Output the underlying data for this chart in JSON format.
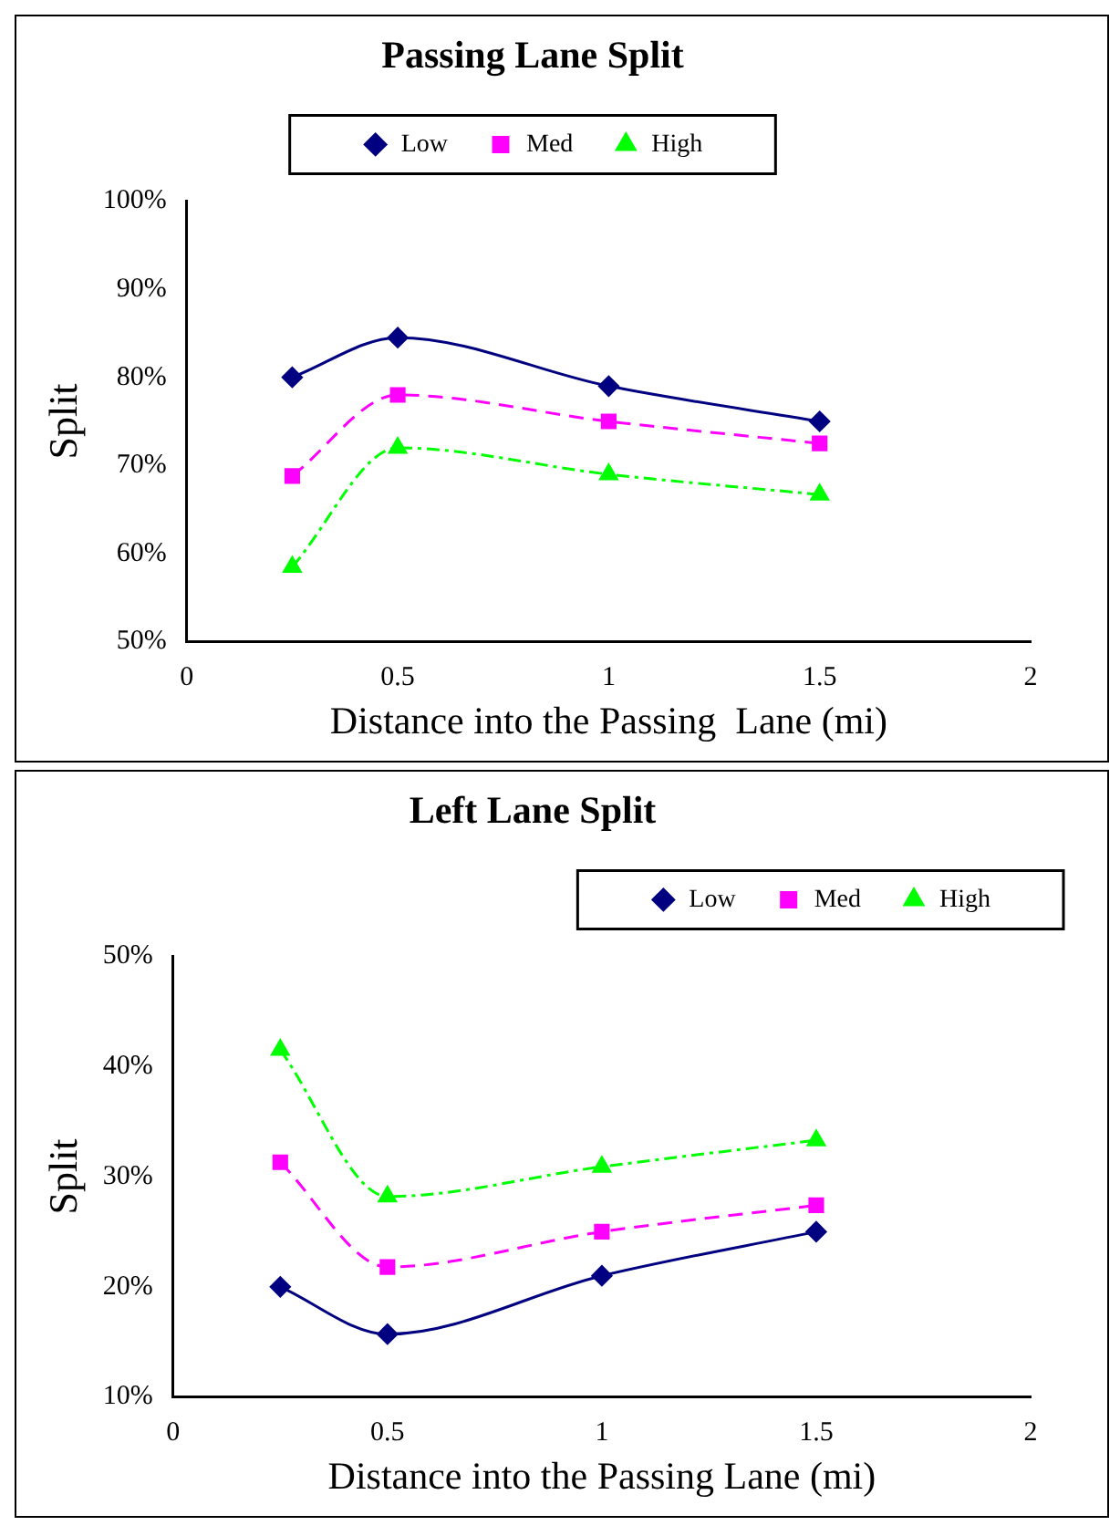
{
  "chart_data": [
    {
      "type": "line",
      "title": "Passing Lane Split",
      "xlabel": "Distance into the Passing  Lane (mi)",
      "ylabel": "Split",
      "xlim": [
        0,
        2
      ],
      "xticks": [
        0,
        0.5,
        1,
        1.5,
        2
      ],
      "ylim": [
        50,
        100
      ],
      "yticks": [
        {
          "value": 50,
          "label": "50%"
        },
        {
          "value": 60,
          "label": "60%"
        },
        {
          "value": 70,
          "label": "70%"
        },
        {
          "value": 80,
          "label": "80%"
        },
        {
          "value": 90,
          "label": "90%"
        },
        {
          "value": 100,
          "label": "100%"
        }
      ],
      "grid": false,
      "legend": "top",
      "x": [
        0.25,
        0.5,
        1,
        1.5
      ],
      "series": [
        {
          "name": "Low",
          "color": "#000080",
          "marker": "diamond",
          "line_style": "solid",
          "values": [
            80,
            84.5,
            79,
            75
          ]
        },
        {
          "name": "Med",
          "color": "#ff00ff",
          "marker": "square",
          "line_style": "dashed",
          "values": [
            68.8,
            78,
            75,
            72.5
          ]
        },
        {
          "name": "High",
          "color": "#00ff00",
          "marker": "triangle",
          "line_style": "dotted",
          "values": [
            58.5,
            72,
            69,
            66.7
          ]
        }
      ]
    },
    {
      "type": "line",
      "title": "Left Lane Split",
      "xlabel": "Distance into the Passing Lane (mi)",
      "ylabel": "Split",
      "xlim": [
        0,
        2
      ],
      "xticks": [
        0,
        0.5,
        1,
        1.5,
        2
      ],
      "ylim": [
        10,
        50
      ],
      "yticks": [
        {
          "value": 10,
          "label": "10%"
        },
        {
          "value": 20,
          "label": "20%"
        },
        {
          "value": 30,
          "label": "30%"
        },
        {
          "value": 40,
          "label": "40%"
        },
        {
          "value": 50,
          "label": "50%"
        }
      ],
      "grid": false,
      "legend": "top right",
      "x": [
        0.25,
        0.5,
        1,
        1.5
      ],
      "series": [
        {
          "name": "Low",
          "color": "#000080",
          "marker": "diamond",
          "line_style": "solid",
          "values": [
            20,
            15.7,
            21,
            25
          ]
        },
        {
          "name": "Med",
          "color": "#ff00ff",
          "marker": "square",
          "line_style": "dashed",
          "values": [
            31.3,
            21.8,
            25,
            27.4
          ]
        },
        {
          "name": "High",
          "color": "#00ff00",
          "marker": "triangle",
          "line_style": "dotted",
          "values": [
            41.5,
            28.2,
            30.9,
            33.3
          ]
        }
      ]
    }
  ]
}
